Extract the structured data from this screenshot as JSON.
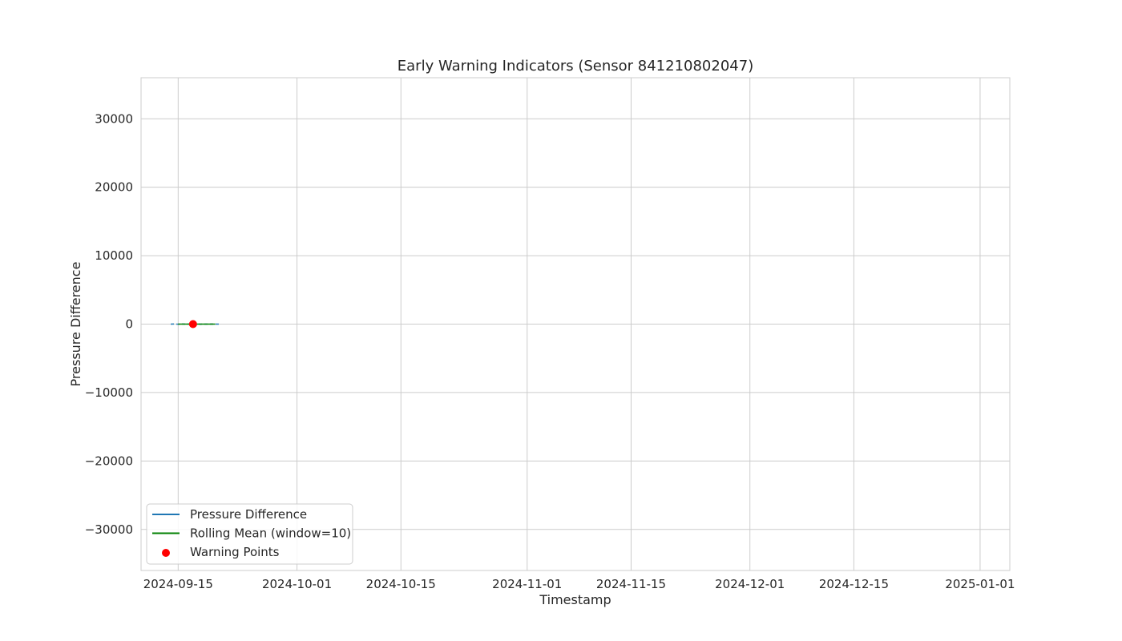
{
  "chart_data": {
    "type": "line",
    "title": "Early Warning Indicators (Sensor 841210802047)",
    "xlabel": "Timestamp",
    "ylabel": "Pressure Difference",
    "x_axis_type": "date",
    "xlim": [
      "2024-09-10",
      "2025-01-05"
    ],
    "ylim": [
      -36000,
      36000
    ],
    "x_ticks": [
      "2024-09-15",
      "2024-10-01",
      "2024-10-15",
      "2024-11-01",
      "2024-11-15",
      "2024-12-01",
      "2024-12-15",
      "2025-01-01"
    ],
    "y_ticks": [
      30000,
      20000,
      10000,
      0,
      -10000,
      -20000,
      -30000
    ],
    "y_tick_labels": [
      "30000",
      "20000",
      "10000",
      "0",
      "−10000",
      "−20000",
      "−30000"
    ],
    "grid": true,
    "legend_position": "lower-left",
    "series": [
      {
        "name": "Pressure Difference",
        "style": "line",
        "color": "#1f77b4",
        "points": [
          {
            "x": "2024-09-14",
            "y": 0
          },
          {
            "x": "2024-09-14.5",
            "y": 10
          },
          {
            "x": "2024-09-15",
            "y": -10
          },
          {
            "x": "2024-09-15.5",
            "y": 20
          },
          {
            "x": "2024-09-16",
            "y": -5
          },
          {
            "x": "2024-09-16.5",
            "y": 15
          },
          {
            "x": "2024-09-17",
            "y": -15
          },
          {
            "x": "2024-09-17.5",
            "y": 10
          },
          {
            "x": "2024-09-18",
            "y": -10
          },
          {
            "x": "2024-09-18.5",
            "y": 5
          },
          {
            "x": "2024-09-19",
            "y": 0
          },
          {
            "x": "2024-09-19.5",
            "y": 10
          },
          {
            "x": "2024-09-20",
            "y": -5
          },
          {
            "x": "2024-09-20.5",
            "y": 0
          }
        ]
      },
      {
        "name": "Rolling Mean (window=10)",
        "style": "line",
        "color": "#008000",
        "points": [
          {
            "x": "2024-09-15",
            "y": 2
          },
          {
            "x": "2024-09-16",
            "y": 3
          },
          {
            "x": "2024-09-17",
            "y": 2
          },
          {
            "x": "2024-09-18",
            "y": 1
          },
          {
            "x": "2024-09-19",
            "y": 2
          },
          {
            "x": "2024-09-20",
            "y": 1
          }
        ]
      },
      {
        "name": "Warning Points",
        "style": "scatter",
        "color": "#ff0000",
        "points": [
          {
            "x": "2024-09-17",
            "y": 0
          }
        ]
      }
    ]
  }
}
